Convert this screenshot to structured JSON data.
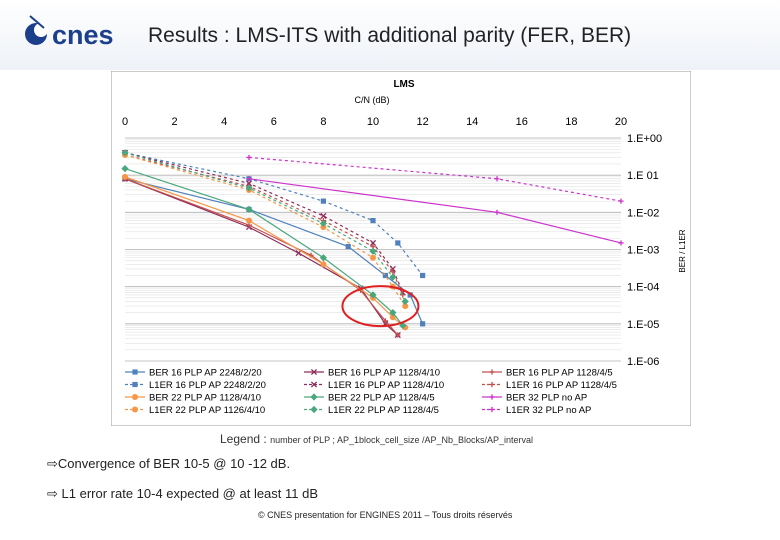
{
  "slide": {
    "title": "Results : LMS-ITS with additional parity (FER, BER)",
    "logo_text": "cnes",
    "legend_caption_prefix": "Legend :",
    "legend_caption_detail": "number of PLP ;  AP_1block_cell_size /AP_Nb_Blocks/AP_interval",
    "bullets": [
      "Convergence of BER 10-5 @ 10 -12 dB.",
      "L1 error rate 10-4 expected @ at least 11 dB"
    ],
    "footer": "© CNES presentation for ENGINES 2011 – Tous droits réservés",
    "arrow_glyph": "⇨"
  },
  "chart_data": {
    "type": "line",
    "title": "LMS",
    "xlabel": "C/N (dB)",
    "ylabel": "BER / L1ER",
    "xlim": [
      0,
      20
    ],
    "ylim_log10": [
      -6,
      0
    ],
    "y_scale": "log",
    "x_axis_position": "top",
    "y_axis_position": "right",
    "grid": true,
    "legend_position": "bottom",
    "x_ticks": [
      "0",
      "2",
      "4",
      "6",
      "8",
      "10",
      "12",
      "14",
      "16",
      "18",
      "20"
    ],
    "y_ticks": [
      "1.E+00",
      "1.E 01",
      "1.E-02",
      "1.E-03",
      "1.E-04",
      "1.E-05",
      "1.E-06"
    ],
    "series": [
      {
        "name": "BER 16 PLP AP 2248/2/20",
        "color": "#4f81bd",
        "style": "solid",
        "marker": "square",
        "x": [
          0,
          5,
          9,
          10.5,
          11.5,
          12
        ],
        "y": [
          0.08,
          0.012,
          0.0012,
          0.0002,
          6e-05,
          1e-05
        ]
      },
      {
        "name": "BER 16 PLP AP 1128/4/10",
        "color": "#8e2b5a",
        "style": "solid",
        "marker": "x",
        "x": [
          0,
          5,
          7,
          9.5,
          10.5,
          11
        ],
        "y": [
          0.08,
          0.004,
          0.0008,
          9e-05,
          1e-05,
          5e-06
        ]
      },
      {
        "name": "BER 16 PLP AP 1128/4/5",
        "color": "#c0504d",
        "style": "solid",
        "marker": "plus",
        "x": [
          0,
          5,
          7.5,
          9.5,
          10.5,
          11
        ],
        "y": [
          0.08,
          0.0045,
          0.0007,
          8e-05,
          1.2e-05,
          5e-06
        ]
      },
      {
        "name": "L1ER 16 PLP AP 2248/2/20",
        "color": "#4f81bd",
        "style": "dash",
        "marker": "square",
        "x": [
          0,
          5,
          8,
          10,
          11,
          12
        ],
        "y": [
          0.4,
          0.08,
          0.02,
          0.006,
          0.0015,
          0.0002
        ]
      },
      {
        "name": "L1ER 16 PLP AP 1128/4/10",
        "color": "#8e2b5a",
        "style": "dash",
        "marker": "x",
        "x": [
          0,
          5,
          8,
          10,
          10.8,
          11.2
        ],
        "y": [
          0.4,
          0.06,
          0.008,
          0.0015,
          0.0003,
          7e-05
        ]
      },
      {
        "name": "L1ER 16 PLP AP 1128/4/5",
        "color": "#c0504d",
        "style": "dash",
        "marker": "plus",
        "x": [
          0,
          5,
          8,
          10,
          10.8,
          11.2
        ],
        "y": [
          0.35,
          0.05,
          0.006,
          0.0012,
          0.00025,
          6e-05
        ]
      },
      {
        "name": "BER 22 PLP AP 1128/4/10",
        "color": "#f79646",
        "style": "solid",
        "marker": "circle",
        "x": [
          0,
          5,
          8,
          10,
          10.8,
          11.3
        ],
        "y": [
          0.09,
          0.006,
          0.0004,
          5e-05,
          1.5e-05,
          8e-06
        ]
      },
      {
        "name": "BER 22 PLP AP 1128/4/5",
        "color": "#4aa77c",
        "style": "solid",
        "marker": "diamond",
        "x": [
          0,
          5,
          8,
          10,
          10.8,
          11.2
        ],
        "y": [
          0.15,
          0.012,
          0.0006,
          6e-05,
          2e-05,
          9e-06
        ]
      },
      {
        "name": "BER 32 PLP no AP",
        "color": "#cc33cc",
        "style": "solid",
        "marker": "plus",
        "x": [
          5,
          15,
          20
        ],
        "y": [
          0.08,
          0.01,
          0.0015
        ]
      },
      {
        "name": "L1ER 22 PLP AP 1126/4/10",
        "color": "#f79646",
        "style": "dash",
        "marker": "circle",
        "x": [
          0,
          5,
          8,
          10,
          10.8,
          11.3
        ],
        "y": [
          0.35,
          0.04,
          0.004,
          0.0006,
          0.0001,
          3e-05
        ]
      },
      {
        "name": "L1ER 22 PLP AP 1128/4/5",
        "color": "#4aa77c",
        "style": "dash",
        "marker": "diamond",
        "x": [
          0,
          5,
          8,
          10,
          10.8,
          11.3
        ],
        "y": [
          0.4,
          0.045,
          0.005,
          0.0009,
          0.00018,
          4e-05
        ]
      },
      {
        "name": "L1ER 32 PLP no AP",
        "color": "#cc33cc",
        "style": "dash",
        "marker": "plus",
        "x": [
          5,
          15,
          20
        ],
        "y": [
          0.3,
          0.08,
          0.02
        ]
      }
    ],
    "annotations": [
      {
        "type": "ellipse",
        "color": "#e02020",
        "x_center": 10.3,
        "y_center": 3e-05
      }
    ]
  }
}
